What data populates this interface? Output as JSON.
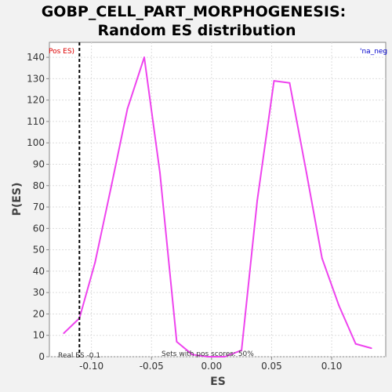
{
  "chart_data": {
    "type": "line",
    "title_line1": "GOBP_CELL_PART_MORPHOGENESIS:",
    "title_line2": "Random ES distribution",
    "xlabel": "ES",
    "ylabel": "P(ES)",
    "xlim": [
      -0.135,
      0.145
    ],
    "ylim": [
      0,
      147
    ],
    "grid": true,
    "x_ticks": [
      -0.1,
      -0.05,
      0.0,
      0.05,
      0.1
    ],
    "x_tick_labels": [
      "-0.10",
      "-0.05",
      "0.00",
      "0.05",
      "0.10"
    ],
    "y_ticks": [
      0,
      10,
      20,
      30,
      40,
      50,
      60,
      70,
      80,
      90,
      100,
      110,
      120,
      130,
      140
    ],
    "y_tick_labels": [
      "0",
      "10",
      "20",
      "30",
      "40",
      "50",
      "60",
      "70",
      "80",
      "90",
      "100",
      "110",
      "120",
      "130",
      "140"
    ],
    "series": [
      {
        "color": "#ee44ee",
        "x": [
          -0.123,
          -0.11,
          -0.097,
          -0.083,
          -0.07,
          -0.056,
          -0.043,
          -0.029,
          -0.016,
          -0.003,
          0.011,
          0.025,
          0.038,
          0.052,
          0.065,
          0.079,
          0.092,
          0.106,
          0.12,
          0.133
        ],
        "y": [
          11,
          18,
          44,
          81,
          116,
          140,
          86,
          7,
          1,
          0,
          0,
          3,
          73,
          129,
          128,
          86,
          46,
          24,
          6,
          4
        ]
      }
    ],
    "real_es": -0.11,
    "annotations": {
      "top_left": "Pos ES)",
      "top_right": "'na_neg",
      "real_es_label": "Real ES -0.1",
      "pos_scores_label": "Sets with pos scores: 50%"
    },
    "colors": {
      "curve": "#ee44ee",
      "real_es_line": "#000000",
      "top_left_annotation": "#dd0000",
      "top_right_annotation": "#0000cc",
      "grid": "#dddddd",
      "plot_bg": "#ffffff",
      "page_bg": "#f2f2f2"
    }
  }
}
